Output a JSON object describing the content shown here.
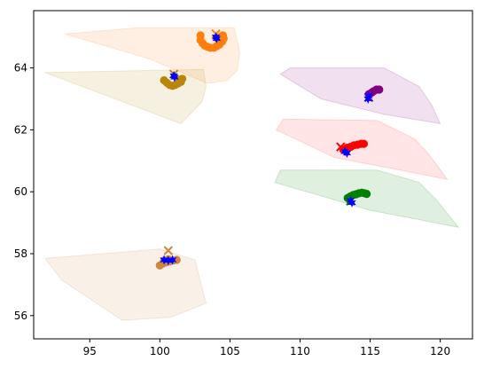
{
  "chart_data": {
    "type": "scatter",
    "title": "",
    "xlabel": "",
    "ylabel": "",
    "xlim": [
      91.0,
      122.3
    ],
    "ylim": [
      55.25,
      65.85
    ],
    "grid": false,
    "xticks": [
      95,
      100,
      105,
      110,
      115,
      120
    ],
    "yticks": [
      56,
      58,
      60,
      62,
      64
    ],
    "xtick_labels": [
      "95",
      "100",
      "105",
      "110",
      "115",
      "120"
    ],
    "ytick_labels": [
      "56",
      "58",
      "60",
      "62",
      "64"
    ],
    "regions": [
      {
        "color": "#ff7f0e",
        "alpha": 0.12,
        "polygon": [
          [
            93.2,
            65.1
          ],
          [
            98.5,
            65.3
          ],
          [
            105.3,
            65.3
          ],
          [
            105.7,
            64.5
          ],
          [
            105.5,
            63.9
          ],
          [
            104.8,
            63.6
          ],
          [
            103.4,
            63.5
          ],
          [
            99.2,
            64.3
          ]
        ]
      },
      {
        "color": "#b8860b",
        "alpha": 0.12,
        "polygon": [
          [
            91.8,
            63.85
          ],
          [
            103.1,
            63.95
          ],
          [
            103.3,
            63.4
          ],
          [
            103.0,
            62.9
          ],
          [
            101.5,
            62.2
          ],
          [
            98.0,
            62.8
          ]
        ]
      },
      {
        "color": "#800080",
        "alpha": 0.12,
        "polygon": [
          [
            108.6,
            63.8
          ],
          [
            109.3,
            64.0
          ],
          [
            116.0,
            64.0
          ],
          [
            118.5,
            63.4
          ],
          [
            119.4,
            62.8
          ],
          [
            120.0,
            62.2
          ],
          [
            116.0,
            62.5
          ],
          [
            111.5,
            63.0
          ]
        ]
      },
      {
        "color": "#ff0000",
        "alpha": 0.1,
        "polygon": [
          [
            108.3,
            62.0
          ],
          [
            108.8,
            62.35
          ],
          [
            115.5,
            62.3
          ],
          [
            118.2,
            61.7
          ],
          [
            119.2,
            61.2
          ],
          [
            120.5,
            60.4
          ],
          [
            116.0,
            60.8
          ],
          [
            112.5,
            61.1
          ]
        ]
      },
      {
        "color": "#008000",
        "alpha": 0.12,
        "polygon": [
          [
            108.2,
            60.3
          ],
          [
            108.6,
            60.7
          ],
          [
            115.5,
            60.7
          ],
          [
            118.5,
            60.3
          ],
          [
            119.8,
            59.7
          ],
          [
            120.5,
            59.3
          ],
          [
            121.3,
            58.85
          ],
          [
            118.5,
            59.1
          ],
          [
            115.0,
            59.4
          ],
          [
            112.0,
            59.8
          ]
        ]
      },
      {
        "color": "#cd853f",
        "alpha": 0.12,
        "polygon": [
          [
            91.8,
            57.85
          ],
          [
            100.0,
            58.15
          ],
          [
            102.5,
            57.8
          ],
          [
            103.3,
            56.4
          ],
          [
            100.8,
            55.95
          ],
          [
            97.3,
            55.85
          ],
          [
            93.0,
            57.15
          ]
        ]
      }
    ],
    "series": [
      {
        "color": "#ff7f0e",
        "marker": "o",
        "points": [
          [
            102.9,
            65.05
          ],
          [
            102.9,
            64.9
          ],
          [
            103.05,
            64.8
          ],
          [
            103.2,
            64.72
          ],
          [
            103.4,
            64.68
          ],
          [
            103.6,
            64.65
          ],
          [
            103.85,
            64.65
          ],
          [
            104.05,
            64.7
          ],
          [
            104.25,
            64.75
          ],
          [
            104.45,
            64.85
          ],
          [
            104.55,
            64.95
          ],
          [
            104.5,
            65.05
          ],
          [
            104.3,
            65.0
          ],
          [
            104.1,
            64.95
          ]
        ],
        "cross": [
          104.0,
          65.1
        ]
      },
      {
        "color": "#b8860b",
        "marker": "o",
        "points": [
          [
            100.3,
            63.6
          ],
          [
            100.5,
            63.52
          ],
          [
            100.7,
            63.45
          ],
          [
            100.9,
            63.42
          ],
          [
            101.1,
            63.45
          ],
          [
            101.3,
            63.5
          ],
          [
            101.5,
            63.55
          ],
          [
            101.6,
            63.65
          ],
          [
            101.4,
            63.62
          ]
        ],
        "cross": [
          101.0,
          63.8
        ]
      },
      {
        "color": "#800080",
        "marker": "o",
        "points": [
          [
            114.9,
            63.15
          ],
          [
            115.1,
            63.2
          ],
          [
            115.25,
            63.25
          ],
          [
            115.45,
            63.3
          ],
          [
            115.65,
            63.3
          ]
        ],
        "cross": [
          114.9,
          63.05
        ]
      },
      {
        "color": "#ff0000",
        "marker": "o",
        "points": [
          [
            113.1,
            61.35
          ],
          [
            113.35,
            61.42
          ],
          [
            113.6,
            61.45
          ],
          [
            113.85,
            61.5
          ],
          [
            114.1,
            61.52
          ],
          [
            114.35,
            61.55
          ],
          [
            114.55,
            61.55
          ]
        ],
        "cross": [
          112.9,
          61.45
        ]
      },
      {
        "color": "#008000",
        "marker": "o",
        "points": [
          [
            113.4,
            59.8
          ],
          [
            113.6,
            59.85
          ],
          [
            113.8,
            59.9
          ],
          [
            114.0,
            59.92
          ],
          [
            114.2,
            59.95
          ],
          [
            114.4,
            59.97
          ],
          [
            114.6,
            59.95
          ],
          [
            114.75,
            59.93
          ]
        ],
        "cross": [
          113.6,
          59.7
        ]
      },
      {
        "color": "#cd853f",
        "marker": "o",
        "points": [
          [
            100.0,
            57.62
          ],
          [
            100.2,
            57.68
          ],
          [
            100.45,
            57.72
          ],
          [
            100.7,
            57.75
          ],
          [
            100.95,
            57.78
          ],
          [
            101.2,
            57.8
          ],
          [
            100.6,
            57.82
          ],
          [
            100.3,
            57.78
          ]
        ],
        "cross": [
          100.6,
          58.1
        ]
      }
    ],
    "blue_points": [
      [
        104.0,
        65.0
      ],
      [
        104.05,
        64.95
      ],
      [
        101.0,
        63.75
      ],
      [
        101.05,
        63.7
      ],
      [
        114.9,
        63.1
      ],
      [
        114.85,
        63.0
      ],
      [
        113.2,
        61.3
      ],
      [
        113.35,
        61.25
      ],
      [
        113.6,
        59.72
      ],
      [
        113.7,
        59.65
      ],
      [
        100.3,
        57.8
      ],
      [
        100.6,
        57.78
      ],
      [
        100.9,
        57.8
      ]
    ]
  }
}
